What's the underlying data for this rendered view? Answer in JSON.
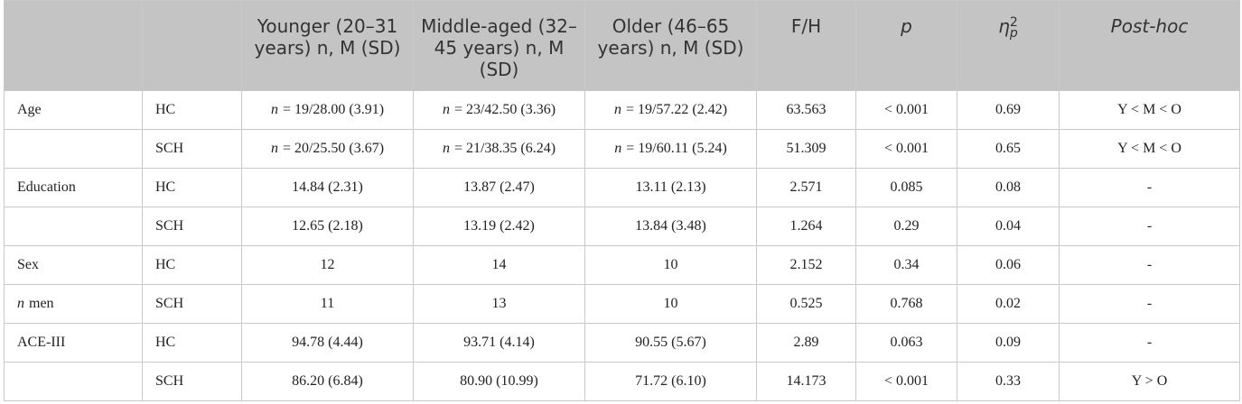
{
  "table": {
    "header": [
      null,
      null,
      {
        "text": "Younger (20–31 years) n, M (SD)"
      },
      {
        "text": "Middle-aged (32–45 years) n, M (SD)"
      },
      {
        "text": "Older (46–65 years) n, M (SD)"
      },
      {
        "text": "F/H"
      },
      {
        "text": "p",
        "italic": true
      },
      {
        "text": "η",
        "sub": "p",
        "sup": "2",
        "italic": true
      },
      {
        "text": "Post-hoc",
        "italic": true
      }
    ],
    "rows": [
      [
        "Age",
        "HC",
        {
          "em": "n",
          "text": "= 19/28.00 (3.91)"
        },
        {
          "em": "n",
          "text": "= 23/42.50 (3.36)"
        },
        {
          "em": "n",
          "text": "= 19/57.22 (2.42)"
        },
        "63.563",
        "< 0.001",
        "0.69",
        "Y < M < O"
      ],
      [
        null,
        "SCH",
        {
          "em": "n",
          "text": "= 20/25.50 (3.67)"
        },
        {
          "em": "n",
          "text": "= 21/38.35 (6.24)"
        },
        {
          "em": "n",
          "text": "= 19/60.11 (5.24)"
        },
        "51.309",
        "< 0.001",
        "0.65",
        "Y < M < O"
      ],
      [
        "Education",
        "HC",
        "14.84 (2.31)",
        "13.87 (2.47)",
        "13.11 (2.13)",
        "2.571",
        "0.085",
        "0.08",
        "-"
      ],
      [
        null,
        "SCH",
        "12.65 (2.18)",
        "13.19 (2.42)",
        "13.84 (3.48)",
        "1.264",
        "0.29",
        "0.04",
        "-"
      ],
      [
        "Sex",
        "HC",
        "12",
        "14",
        "10",
        "2.152",
        "0.34",
        "0.06",
        "-"
      ],
      [
        {
          "em": "n",
          "text": "men"
        },
        "SCH",
        "11",
        "13",
        "10",
        "0.525",
        "0.768",
        "0.02",
        "-"
      ],
      [
        "ACE-III",
        "HC",
        "94.78 (4.44)",
        "93.71 (4.14)",
        "90.55 (5.67)",
        "2.89",
        "0.063",
        "0.09",
        "-"
      ],
      [
        null,
        "SCH",
        "86.20 (6.84)",
        "80.90 (10.99)",
        "71.72 (6.10)",
        "14.173",
        "< 0.001",
        "0.33",
        "Y > O"
      ]
    ]
  }
}
